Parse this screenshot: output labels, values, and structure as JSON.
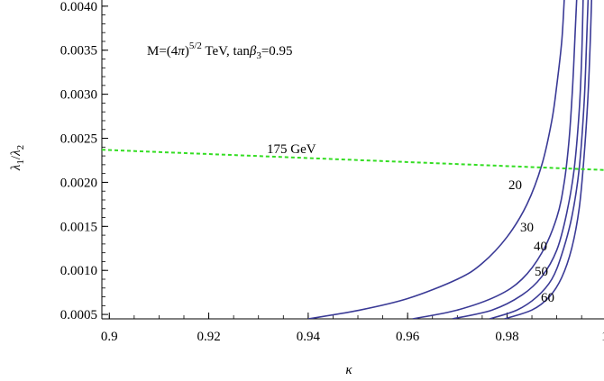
{
  "chart_data": {
    "type": "line",
    "title": "",
    "annotation": {
      "prefix": "M=(4",
      "pi": "π",
      "sup": "5/2",
      "mid": " TeV, tan",
      "beta": "β",
      "sub": "3",
      "suffix": "=0.95"
    },
    "xlabel": "κ",
    "ylabel": {
      "main": "λ",
      "sub1": "1",
      "slash": "/",
      "main2": "λ",
      "sub2": "2"
    },
    "xlim": [
      0.8985,
      0.9995
    ],
    "ylim": [
      0.00045,
      0.00407
    ],
    "x_ticks": [
      {
        "value": 0.9,
        "label": "0.9"
      },
      {
        "value": 0.92,
        "label": "0.92"
      },
      {
        "value": 0.94,
        "label": "0.94"
      },
      {
        "value": 0.96,
        "label": "0.96"
      },
      {
        "value": 0.98,
        "label": "0.98"
      },
      {
        "value": 1.0,
        "label": "1."
      }
    ],
    "y_ticks": [
      {
        "value": 0.0005,
        "label": "0.0005"
      },
      {
        "value": 0.001,
        "label": "0.0010"
      },
      {
        "value": 0.0015,
        "label": "0.0015"
      },
      {
        "value": 0.002,
        "label": "0.0020"
      },
      {
        "value": 0.0025,
        "label": "0.0025"
      },
      {
        "value": 0.003,
        "label": "0.0030"
      },
      {
        "value": 0.0035,
        "label": "0.0035"
      },
      {
        "value": 0.004,
        "label": "0.0040"
      }
    ],
    "series": [
      {
        "label": "20",
        "color": "#3a3a96",
        "points": [
          [
            0.94,
            0.00045
          ],
          [
            0.95,
            0.000545
          ],
          [
            0.96,
            0.00068
          ],
          [
            0.97,
            0.0009
          ],
          [
            0.975,
            0.00108
          ],
          [
            0.98,
            0.00138
          ],
          [
            0.984,
            0.00175
          ],
          [
            0.987,
            0.0022
          ],
          [
            0.989,
            0.0027
          ],
          [
            0.99,
            0.0031
          ],
          [
            0.991,
            0.0036
          ],
          [
            0.9915,
            0.00407
          ]
        ]
      },
      {
        "label": "30",
        "color": "#3a3a96",
        "points": [
          [
            0.961,
            0.00045
          ],
          [
            0.97,
            0.00055
          ],
          [
            0.978,
            0.00071
          ],
          [
            0.983,
            0.0009
          ],
          [
            0.987,
            0.0012
          ],
          [
            0.99,
            0.0016
          ],
          [
            0.9915,
            0.002
          ],
          [
            0.9925,
            0.0025
          ],
          [
            0.9932,
            0.0031
          ],
          [
            0.9937,
            0.0037
          ],
          [
            0.994,
            0.00407
          ]
        ]
      },
      {
        "label": "40",
        "color": "#3a3a96",
        "points": [
          [
            0.969,
            0.00045
          ],
          [
            0.977,
            0.00055
          ],
          [
            0.983,
            0.00072
          ],
          [
            0.987,
            0.00093
          ],
          [
            0.99,
            0.00123
          ],
          [
            0.992,
            0.00165
          ],
          [
            0.9935,
            0.00215
          ],
          [
            0.9945,
            0.0028
          ],
          [
            0.995,
            0.0034
          ],
          [
            0.9953,
            0.00407
          ]
        ]
      },
      {
        "label": "50",
        "color": "#3a3a96",
        "points": [
          [
            0.9765,
            0.00045
          ],
          [
            0.982,
            0.00055
          ],
          [
            0.986,
            0.0007
          ],
          [
            0.989,
            0.0009
          ],
          [
            0.991,
            0.00118
          ],
          [
            0.993,
            0.0016
          ],
          [
            0.9945,
            0.00215
          ],
          [
            0.9955,
            0.0029
          ],
          [
            0.996,
            0.0036
          ],
          [
            0.9963,
            0.00407
          ]
        ]
      },
      {
        "label": "60",
        "color": "#3a3a96",
        "points": [
          [
            0.9795,
            0.00045
          ],
          [
            0.985,
            0.00055
          ],
          [
            0.9885,
            0.0007
          ],
          [
            0.991,
            0.00092
          ],
          [
            0.993,
            0.00125
          ],
          [
            0.9945,
            0.0017
          ],
          [
            0.9955,
            0.0023
          ],
          [
            0.9963,
            0.003
          ],
          [
            0.9968,
            0.0037
          ],
          [
            0.997,
            0.00407
          ]
        ]
      }
    ],
    "reference_line": {
      "label": "175 GeV",
      "color": "#33dd22",
      "style": "dashed",
      "points": [
        [
          0.8985,
          0.00237
        ],
        [
          0.9995,
          0.00214
        ]
      ]
    }
  }
}
